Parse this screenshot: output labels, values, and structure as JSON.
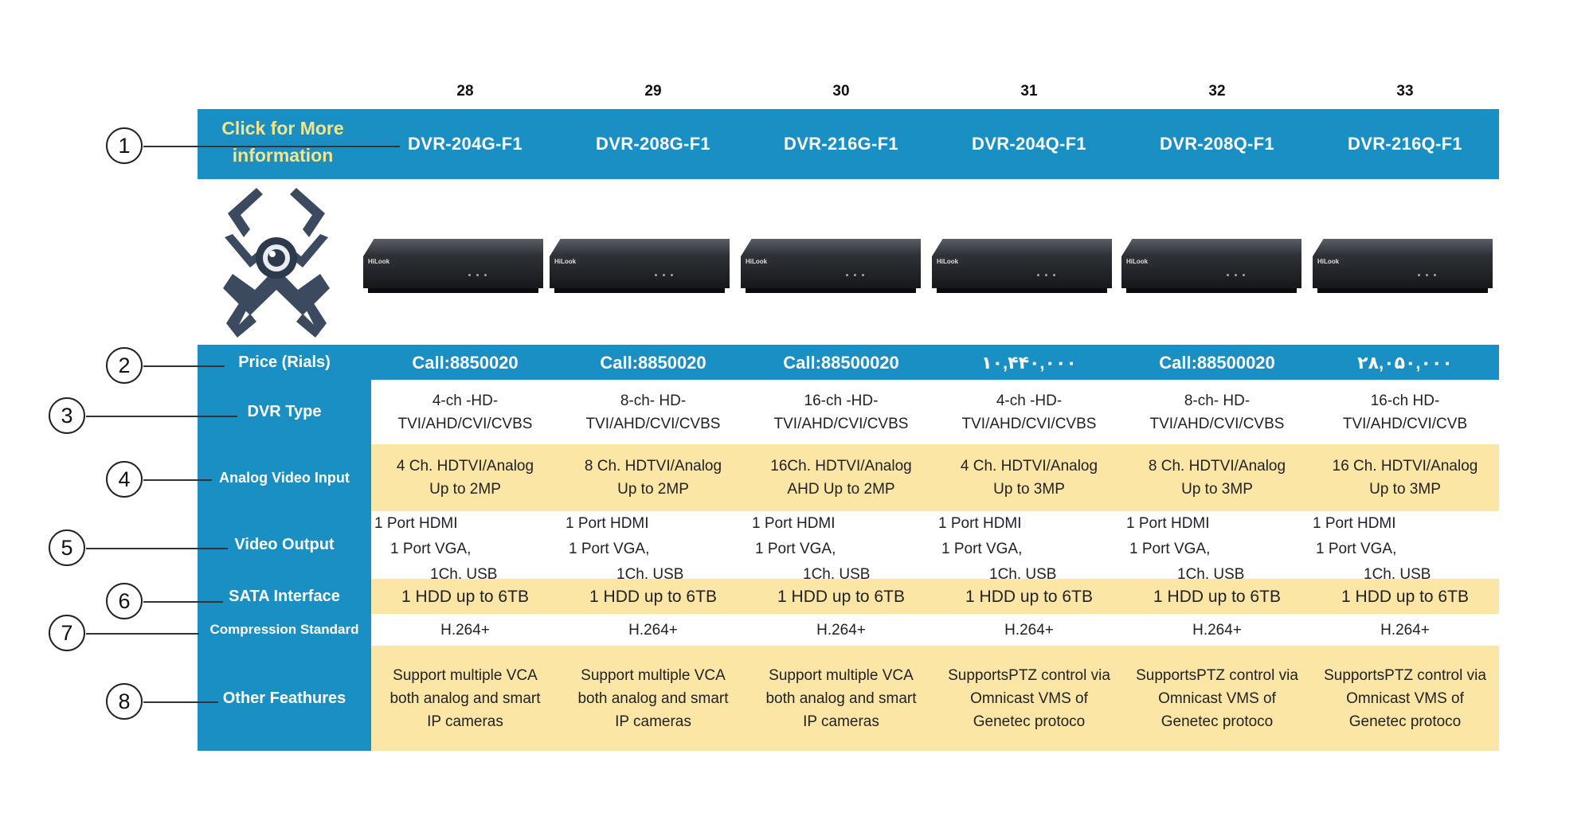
{
  "columns": [
    "28",
    "29",
    "30",
    "31",
    "32",
    "33"
  ],
  "header": {
    "more_line1": "Click for More",
    "more_line2": "information"
  },
  "models": [
    "DVR-204G-F1",
    "DVR-208G-F1",
    "DVR-216G-F1",
    "DVR-204Q-F1",
    "DVR-208Q-F1",
    "DVR-216Q-F1"
  ],
  "device_brand": "HiLook",
  "circles": [
    "1",
    "2",
    "3",
    "4",
    "5",
    "6",
    "7",
    "8"
  ],
  "rows": {
    "price": {
      "label": "Price (Rials)",
      "values": [
        "Call:8850020",
        "Call:8850020",
        "Call:88500020",
        "۱۰,۴۴۰,۰۰۰",
        "Call:88500020",
        "۲۸,۰۵۰,۰۰۰"
      ]
    },
    "dvr_type": {
      "label": "DVR Type",
      "values": [
        [
          "4-ch -HD-",
          "TVI/AHD/CVI/CVBS"
        ],
        [
          "8-ch- HD-",
          "TVI/AHD/CVI/CVBS"
        ],
        [
          "16-ch -HD-",
          "TVI/AHD/CVI/CVBS"
        ],
        [
          "4-ch -HD-",
          "TVI/AHD/CVI/CVBS"
        ],
        [
          "8-ch- HD-",
          "TVI/AHD/CVI/CVBS"
        ],
        [
          "16-ch HD-",
          "TVI/AHD/CVI/CVB"
        ]
      ]
    },
    "analog_input": {
      "label": "Analog Video Input",
      "values": [
        [
          "4 Ch. HDTVI/Analog",
          "Up to 2MP"
        ],
        [
          "8 Ch. HDTVI/Analog",
          "Up to 2MP"
        ],
        [
          "16Ch. HDTVI/Analog",
          "AHD Up to 2MP"
        ],
        [
          "4 Ch. HDTVI/Analog",
          "Up to 3MP"
        ],
        [
          "8 Ch. HDTVI/Analog",
          "Up to 3MP"
        ],
        [
          "16 Ch. HDTVI/Analog",
          "Up to 3MP"
        ]
      ]
    },
    "video_output": {
      "label": "Video Output",
      "values": [
        [
          "1 Port HDMI",
          "1 Port VGA,",
          "1Ch. USB"
        ],
        [
          "1 Port HDMI",
          "1 Port VGA,",
          "1Ch. USB"
        ],
        [
          "1 Port HDMI",
          "1 Port VGA,",
          "1Ch. USB"
        ],
        [
          "1 Port HDMI",
          "1 Port VGA,",
          "1Ch. USB"
        ],
        [
          "1 Port HDMI",
          "1 Port VGA,",
          "1Ch. USB"
        ],
        [
          "1 Port HDMI",
          "1 Port VGA,",
          "1Ch. USB"
        ]
      ]
    },
    "sata": {
      "label": "SATA Interface",
      "values": [
        "1 HDD up to 6TB",
        "1 HDD up to 6TB",
        "1 HDD up to 6TB",
        "1 HDD up to 6TB",
        "1 HDD up to 6TB",
        "1 HDD up to 6TB"
      ]
    },
    "compression": {
      "label": "Compression Standard",
      "values": [
        "H.264+",
        "H.264+",
        "H.264+",
        "H.264+",
        "H.264+",
        "H.264+"
      ]
    },
    "other": {
      "label": "Other Feathures",
      "values": [
        [
          "Support multiple VCA",
          "both analog and smart",
          "IP cameras"
        ],
        [
          "Support multiple VCA",
          "both analog and smart",
          "IP cameras"
        ],
        [
          "Support multiple VCA",
          "both analog and smart",
          "IP cameras"
        ],
        [
          "SupportsPTZ control via",
          "Omnicast VMS of",
          "Genetec protoco"
        ],
        [
          "SupportsPTZ control via",
          "Omnicast VMS of",
          "Genetec protoco"
        ],
        [
          "SupportsPTZ control via",
          "Omnicast VMS of",
          "Genetec protoco"
        ]
      ]
    }
  }
}
